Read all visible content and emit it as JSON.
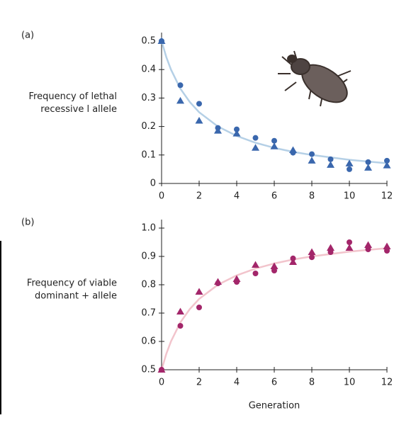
{
  "chart_data": [
    {
      "type": "scatter",
      "panel_label": "(a)",
      "ylabel": [
        "Frequency of lethal",
        "recessive l allele"
      ],
      "xlim": [
        0,
        12
      ],
      "xticks": [
        0,
        2,
        4,
        6,
        8,
        10,
        12
      ],
      "ylim": [
        0,
        0.5
      ],
      "yticks": [
        0,
        0.1,
        0.2,
        0.3,
        0.4,
        0.5
      ],
      "series": [
        {
          "marker": "line",
          "color": "#b5d0e6",
          "x": [
            0,
            0.25,
            0.5,
            1,
            1.5,
            2,
            3,
            4,
            5,
            6,
            7,
            8,
            10,
            12
          ],
          "values": [
            0.5,
            0.444,
            0.4,
            0.333,
            0.286,
            0.25,
            0.2,
            0.167,
            0.143,
            0.125,
            0.111,
            0.1,
            0.083,
            0.071
          ]
        },
        {
          "marker": "circle",
          "color": "#3a67ad",
          "x": [
            0,
            1,
            2,
            3,
            4,
            5,
            6,
            7,
            8,
            9,
            10,
            11,
            12
          ],
          "values": [
            0.5,
            0.345,
            0.28,
            0.195,
            0.19,
            0.16,
            0.15,
            0.108,
            0.103,
            0.085,
            0.05,
            0.075,
            0.08
          ]
        },
        {
          "marker": "triangle",
          "color": "#3a67ad",
          "x": [
            0,
            1,
            2,
            3,
            4,
            5,
            6,
            7,
            8,
            9,
            10,
            11,
            12
          ],
          "values": [
            0.5,
            0.29,
            0.22,
            0.185,
            0.175,
            0.125,
            0.13,
            0.117,
            0.08,
            0.065,
            0.07,
            0.055,
            0.063
          ]
        }
      ]
    },
    {
      "type": "scatter",
      "panel_label": "(b)",
      "ylabel": [
        "Frequency of viable",
        "dominant + allele"
      ],
      "xlabel": "Generation",
      "xlim": [
        0,
        12
      ],
      "xticks": [
        0,
        2,
        4,
        6,
        8,
        10,
        12
      ],
      "ylim": [
        0.5,
        1
      ],
      "yticks": [
        0.5,
        0.6,
        0.7,
        0.8,
        0.9,
        {
          "value": 1,
          "label": "1.0"
        }
      ],
      "series": [
        {
          "marker": "line",
          "color": "#f2c4cc",
          "x": [
            0,
            0.25,
            0.5,
            1,
            1.5,
            2,
            3,
            4,
            5,
            6,
            7,
            8,
            10,
            12
          ],
          "values": [
            0.5,
            0.556,
            0.6,
            0.667,
            0.714,
            0.75,
            0.8,
            0.833,
            0.857,
            0.875,
            0.889,
            0.9,
            0.917,
            0.929
          ]
        },
        {
          "marker": "circle",
          "color": "#a3266a",
          "x": [
            0,
            1,
            2,
            3,
            4,
            5,
            6,
            7,
            8,
            9,
            10,
            11,
            12
          ],
          "values": [
            0.5,
            0.655,
            0.72,
            0.805,
            0.81,
            0.84,
            0.85,
            0.893,
            0.897,
            0.915,
            0.95,
            0.925,
            0.92
          ]
        },
        {
          "marker": "triangle",
          "color": "#a3266a",
          "x": [
            0,
            1,
            2,
            3,
            4,
            5,
            6,
            7,
            8,
            9,
            10,
            11,
            12
          ],
          "values": [
            0.5,
            0.705,
            0.775,
            0.81,
            0.82,
            0.87,
            0.865,
            0.88,
            0.915,
            0.93,
            0.93,
            0.94,
            0.935
          ]
        }
      ]
    }
  ]
}
